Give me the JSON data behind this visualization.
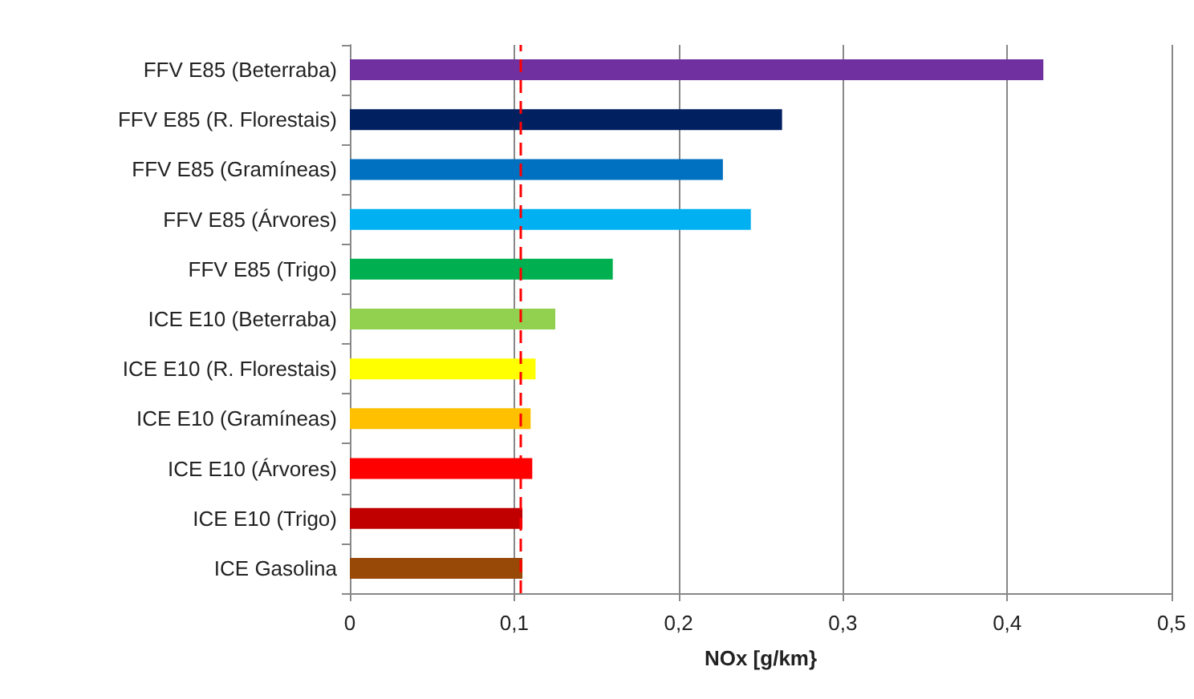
{
  "chart_data": {
    "type": "bar",
    "orientation": "horizontal",
    "xlabel": "NOx [g/km}",
    "categories": [
      "FFV E85 (Beterraba)",
      "FFV E85 (R. Florestais)",
      "FFV E85 (Gramíneas)",
      "FFV E85 (Árvores)",
      "FFV E85 (Trigo)",
      "ICE E10 (Beterraba)",
      "ICE E10 (R. Florestais)",
      "ICE E10 (Gramíneas)",
      "ICE E10 (Árvores)",
      "ICE E10 (Trigo)",
      "ICE Gasolina"
    ],
    "values": [
      0.422,
      0.263,
      0.227,
      0.244,
      0.16,
      0.125,
      0.113,
      0.11,
      0.111,
      0.105,
      0.105
    ],
    "colors": [
      "#7030a0",
      "#002060",
      "#0070c0",
      "#00b0f0",
      "#00b050",
      "#92d050",
      "#ffff00",
      "#ffc000",
      "#ff0000",
      "#c00000",
      "#984807"
    ],
    "xlim": [
      0,
      0.5
    ],
    "xticks": [
      0,
      {
        "value": 0.1,
        "label": "0,1"
      },
      {
        "value": 0.2,
        "label": "0,2"
      },
      {
        "value": 0.3,
        "label": "0,3"
      },
      {
        "value": 0.4,
        "label": "0,4"
      },
      {
        "value": 0.5,
        "label": "0,5"
      }
    ],
    "ref_lines": [
      {
        "axis": "x",
        "value": 0.104,
        "color": "#ff0000",
        "line_style": "dashed"
      }
    ],
    "grid": "x"
  }
}
